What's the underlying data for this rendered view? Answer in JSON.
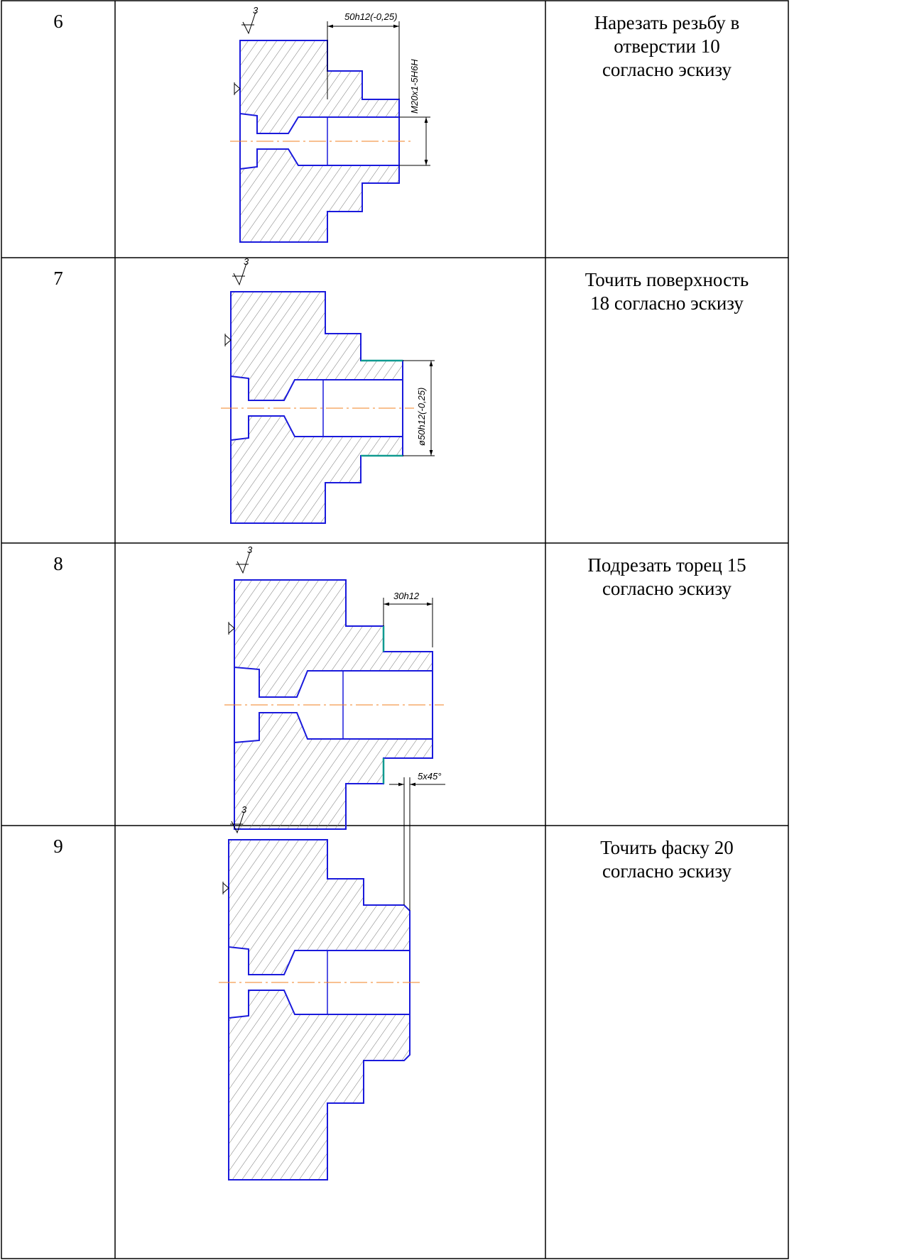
{
  "table": {
    "rows": [
      {
        "number": "6",
        "description": [
          "Нарезать резьбу в",
          "отверстии 10",
          "согласно эскизу"
        ],
        "sketch": {
          "roughness": "3",
          "dimensions": [
            "50h12(-0,25)",
            "M20x1-5H6H"
          ]
        }
      },
      {
        "number": "7",
        "description": [
          "Точить поверхность",
          "18 согласно эскизу"
        ],
        "sketch": {
          "roughness": "3",
          "dimensions": [
            "ø50h12(-0,25)"
          ]
        }
      },
      {
        "number": "8",
        "description": [
          "Подрезать торец 15",
          "согласно эскизу"
        ],
        "sketch": {
          "roughness": "3",
          "dimensions": [
            "30h12"
          ]
        }
      },
      {
        "number": "9",
        "description": [
          "Точить фаску 20",
          "согласно эскизу"
        ],
        "sketch": {
          "roughness": "3",
          "dimensions": [
            "5x45°"
          ]
        }
      }
    ]
  }
}
